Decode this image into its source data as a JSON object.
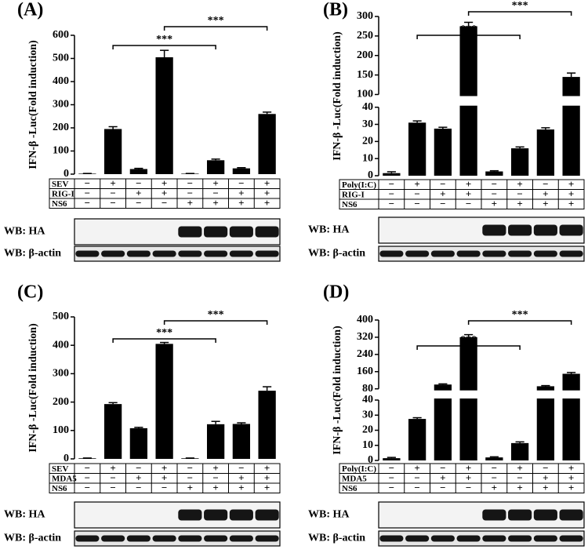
{
  "chart_data": [
    {
      "type": "bar",
      "title": "(A)",
      "ylabel": "IFN-β -Luc(Fold induction)",
      "values": [
        2,
        195,
        22,
        505,
        2,
        60,
        25,
        260
      ],
      "errors": [
        1,
        10,
        3,
        30,
        1,
        5,
        3,
        8
      ],
      "color": "#000000",
      "ylim": [
        0,
        600
      ],
      "yticks": [
        0,
        100,
        200,
        300,
        400,
        500,
        600
      ],
      "conditions": [
        {
          "name": "SEV",
          "signs": [
            "−",
            "+",
            "−",
            "+",
            "−",
            "+",
            "−",
            "+"
          ]
        },
        {
          "name": "RIG-I",
          "signs": [
            "−",
            "−",
            "+",
            "+",
            "−",
            "−",
            "+",
            "+"
          ]
        },
        {
          "name": "NS6",
          "signs": [
            "−",
            "−",
            "−",
            "−",
            "+",
            "+",
            "+",
            "+"
          ]
        }
      ],
      "significance": [
        {
          "from": 1,
          "to": 5,
          "label": "***"
        },
        {
          "from": 3,
          "to": 7,
          "label": "***"
        }
      ],
      "blots": [
        "WB: HA",
        "WB: β-actin"
      ]
    },
    {
      "type": "bar",
      "title": "(B)",
      "ylabel": "IFN-β -Luc(Fold induction)",
      "values": [
        1.5,
        31,
        27.5,
        275,
        2.5,
        16,
        27,
        145
      ],
      "errors": [
        0.8,
        1,
        0.8,
        10,
        0.4,
        0.8,
        1,
        10
      ],
      "color": "#000000",
      "ylim": [
        0,
        300
      ],
      "ybreak": [
        40,
        100
      ],
      "yticks": [
        0,
        10,
        20,
        30,
        40,
        100,
        150,
        200,
        250,
        300
      ],
      "conditions": [
        {
          "name": "Poly(I:C)",
          "signs": [
            "−",
            "+",
            "−",
            "+",
            "−",
            "+",
            "−",
            "+"
          ]
        },
        {
          "name": "RIG-I",
          "signs": [
            "−",
            "−",
            "+",
            "+",
            "−",
            "−",
            "+",
            "+"
          ]
        },
        {
          "name": "NS6",
          "signs": [
            "−",
            "−",
            "−",
            "−",
            "+",
            "+",
            "+",
            "+"
          ]
        }
      ],
      "significance": [
        {
          "from": 1,
          "to": 5,
          "label": "***"
        },
        {
          "from": 3,
          "to": 7,
          "label": "***"
        }
      ],
      "blots": [
        "WB: HA",
        "WB: β-actin"
      ]
    },
    {
      "type": "bar",
      "title": "(C)",
      "ylabel": "IFN-β -Luc(Fold induction)",
      "values": [
        2,
        193,
        108,
        405,
        2,
        122,
        123,
        240
      ],
      "errors": [
        1,
        5,
        3,
        5,
        1,
        10,
        4,
        14
      ],
      "color": "#000000",
      "ylim": [
        0,
        500
      ],
      "yticks": [
        0,
        100,
        200,
        300,
        400,
        500
      ],
      "conditions": [
        {
          "name": "SEV",
          "signs": [
            "−",
            "+",
            "−",
            "+",
            "−",
            "+",
            "−",
            "+"
          ]
        },
        {
          "name": "MDA5",
          "signs": [
            "−",
            "−",
            "+",
            "+",
            "−",
            "−",
            "+",
            "+"
          ]
        },
        {
          "name": "NS6",
          "signs": [
            "−",
            "−",
            "−",
            "−",
            "+",
            "+",
            "+",
            "+"
          ]
        }
      ],
      "significance": [
        {
          "from": 1,
          "to": 5,
          "label": "***"
        },
        {
          "from": 3,
          "to": 7,
          "label": "***"
        }
      ],
      "blots": [
        "WB: HA",
        "WB: β-actin"
      ]
    },
    {
      "type": "bar",
      "title": "(D)",
      "ylabel": "IFN-β -Luc(Fold induction)",
      "values": [
        1.5,
        27.5,
        100,
        320,
        2,
        11.5,
        92,
        150
      ],
      "errors": [
        0.5,
        0.8,
        3,
        12,
        0.4,
        0.8,
        3,
        6
      ],
      "color": "#000000",
      "ylim": [
        0,
        400
      ],
      "ybreak": [
        40,
        80
      ],
      "yticks": [
        0,
        10,
        20,
        30,
        40,
        80,
        160,
        240,
        320,
        400
      ],
      "conditions": [
        {
          "name": "Poly(I:C)",
          "signs": [
            "−",
            "+",
            "−",
            "+",
            "−",
            "+",
            "−",
            "+"
          ]
        },
        {
          "name": "MDA5",
          "signs": [
            "−",
            "−",
            "+",
            "+",
            "−",
            "−",
            "+",
            "+"
          ]
        },
        {
          "name": "NS6",
          "signs": [
            "−",
            "−",
            "−",
            "−",
            "+",
            "+",
            "+",
            "+"
          ]
        }
      ],
      "significance": [
        {
          "from": 1,
          "to": 5,
          "label": "***"
        },
        {
          "from": 3,
          "to": 7,
          "label": "***"
        }
      ],
      "blots": [
        "WB: HA",
        "WB: β-actin"
      ]
    }
  ]
}
